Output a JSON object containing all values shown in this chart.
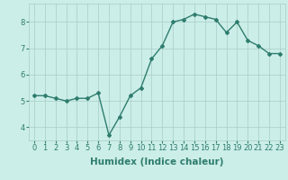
{
  "x": [
    0,
    1,
    2,
    3,
    4,
    5,
    6,
    7,
    8,
    9,
    10,
    11,
    12,
    13,
    14,
    15,
    16,
    17,
    18,
    19,
    20,
    21,
    22,
    23
  ],
  "y": [
    5.2,
    5.2,
    5.1,
    5.0,
    5.1,
    5.1,
    5.3,
    3.7,
    4.4,
    5.2,
    5.5,
    6.6,
    7.1,
    8.0,
    8.1,
    8.3,
    8.2,
    8.1,
    7.6,
    8.0,
    7.3,
    7.1,
    6.8,
    6.8
  ],
  "xlabel": "Humidex (Indice chaleur)",
  "line_color": "#2e7d6e",
  "bg_color": "#cceee8",
  "grid_color": "#aaccc6",
  "ylim": [
    3.5,
    8.7
  ],
  "xlim": [
    -0.5,
    23.5
  ],
  "yticks": [
    4,
    5,
    6,
    7,
    8
  ],
  "xticks": [
    0,
    1,
    2,
    3,
    4,
    5,
    6,
    7,
    8,
    9,
    10,
    11,
    12,
    13,
    14,
    15,
    16,
    17,
    18,
    19,
    20,
    21,
    22,
    23
  ],
  "tick_fontsize": 6.0,
  "xlabel_fontsize": 7.5,
  "marker": "D",
  "marker_size": 2.0,
  "linewidth": 1.0
}
